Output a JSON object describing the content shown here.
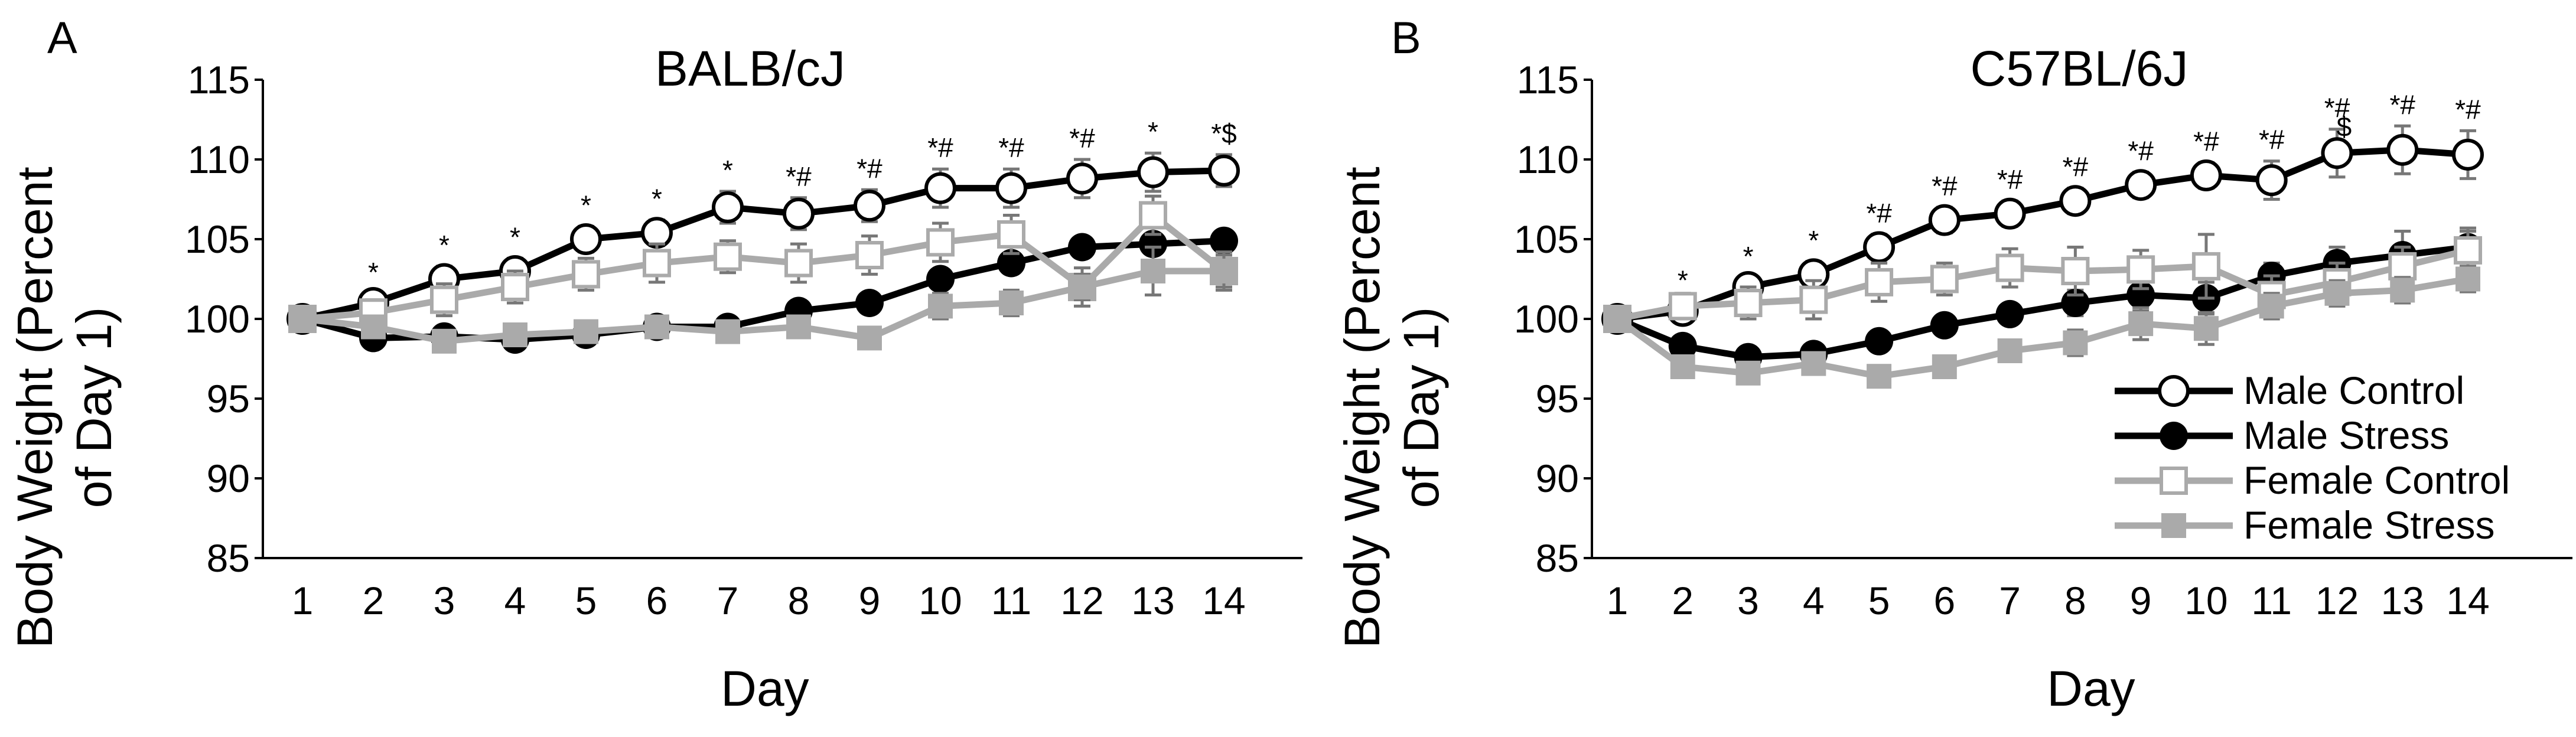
{
  "chart_data": [
    {
      "type": "line",
      "panel_letter": "A",
      "title": "BALB/cJ",
      "xlabel": "Day",
      "ylabel_line1": "Body Weight (Percent",
      "ylabel_line2": "of Day 1)",
      "ylim": [
        85,
        115
      ],
      "y_ticks": [
        85,
        90,
        95,
        100,
        105,
        110,
        115
      ],
      "x": [
        1,
        2,
        3,
        4,
        5,
        6,
        7,
        8,
        9,
        10,
        11,
        12,
        13,
        14
      ],
      "series": [
        {
          "name": "Male Control",
          "color": "#000000",
          "marker": "open-circle",
          "values": [
            100,
            101.0,
            102.5,
            103.0,
            105.0,
            105.4,
            107.0,
            106.6,
            107.1,
            108.2,
            108.2,
            108.8,
            109.2,
            109.3
          ],
          "errors": [
            0,
            0.6,
            0.8,
            0.8,
            0.8,
            0.8,
            1.0,
            1.0,
            1.0,
            1.2,
            1.2,
            1.2,
            1.2,
            1.0
          ]
        },
        {
          "name": "Male Stress",
          "color": "#000000",
          "marker": "filled-circle",
          "values": [
            100,
            98.8,
            98.9,
            98.7,
            99.0,
            99.5,
            99.5,
            100.5,
            101.0,
            102.5,
            103.5,
            104.5,
            104.7,
            104.9
          ],
          "errors": [
            0,
            0.3,
            0.3,
            0.3,
            0.3,
            0.3,
            0.3,
            0.4,
            0.4,
            0.5,
            0.5,
            0.6,
            0.6,
            0.6
          ]
        },
        {
          "name": "Female Control",
          "color": "#aaaaaa",
          "marker": "open-square",
          "values": [
            100,
            100.4,
            101.2,
            102.0,
            102.8,
            103.5,
            103.9,
            103.5,
            104.0,
            104.8,
            105.3,
            102.0,
            106.5,
            103.0
          ],
          "errors": [
            0,
            0.8,
            1.0,
            1.0,
            1.0,
            1.2,
            1.0,
            1.2,
            1.2,
            1.2,
            1.2,
            1.2,
            1.2,
            1.2
          ]
        },
        {
          "name": "Female Stress",
          "color": "#aaaaaa",
          "marker": "filled-square",
          "values": [
            100,
            99.5,
            98.6,
            99.0,
            99.2,
            99.5,
            99.2,
            99.5,
            98.8,
            100.8,
            101.0,
            102.0,
            103.0,
            103.0
          ],
          "errors": [
            0,
            0.3,
            0.4,
            0.5,
            0.5,
            0.5,
            0.6,
            0.6,
            0.6,
            0.8,
            0.8,
            0.8,
            1.5,
            1.0
          ]
        }
      ],
      "annotations": [
        {
          "day": 2,
          "text": "*"
        },
        {
          "day": 3,
          "text": "*"
        },
        {
          "day": 4,
          "text": "*"
        },
        {
          "day": 5,
          "text": "*"
        },
        {
          "day": 6,
          "text": "*"
        },
        {
          "day": 7,
          "text": "*"
        },
        {
          "day": 8,
          "text": "*#"
        },
        {
          "day": 9,
          "text": "*#"
        },
        {
          "day": 10,
          "text": "*#"
        },
        {
          "day": 11,
          "text": "*#"
        },
        {
          "day": 12,
          "text": "*#"
        },
        {
          "day": 13,
          "text": "*"
        },
        {
          "day": 14,
          "text": "*$"
        }
      ]
    },
    {
      "type": "line",
      "panel_letter": "B",
      "title": "C57BL/6J",
      "xlabel": "Day",
      "ylabel_line1": "Body Weight (Percent",
      "ylabel_line2": "of Day 1)",
      "ylim": [
        85,
        115
      ],
      "y_ticks": [
        85,
        90,
        95,
        100,
        105,
        110,
        115
      ],
      "x": [
        1,
        2,
        3,
        4,
        5,
        6,
        7,
        8,
        9,
        10,
        11,
        12,
        13,
        14
      ],
      "legend_position": "bottom-right",
      "series": [
        {
          "name": "Male Control",
          "color": "#000000",
          "marker": "open-circle",
          "values": [
            100,
            100.5,
            102.0,
            102.8,
            104.5,
            106.2,
            106.6,
            107.4,
            108.4,
            109.0,
            108.7,
            110.4,
            110.6,
            110.3
          ],
          "errors": [
            0,
            0.6,
            0.6,
            0.8,
            0.8,
            0.8,
            0.8,
            0.8,
            0.8,
            0.8,
            1.2,
            1.5,
            1.5,
            1.5
          ]
        },
        {
          "name": "Male Stress",
          "color": "#000000",
          "marker": "filled-circle",
          "values": [
            100,
            98.3,
            97.6,
            97.8,
            98.6,
            99.6,
            100.3,
            101.0,
            101.5,
            101.3,
            102.7,
            103.5,
            104.0,
            104.5
          ],
          "errors": [
            0,
            0.5,
            0.5,
            0.5,
            0.5,
            0.5,
            0.6,
            0.8,
            1.0,
            1.0,
            0.8,
            1.0,
            1.5,
            1.2
          ]
        },
        {
          "name": "Female Control",
          "color": "#aaaaaa",
          "marker": "open-square",
          "values": [
            100,
            100.8,
            101.0,
            101.2,
            102.3,
            102.5,
            103.2,
            103.0,
            103.1,
            103.3,
            101.5,
            102.3,
            103.3,
            104.3
          ],
          "errors": [
            0,
            0.8,
            1.0,
            1.2,
            1.2,
            1.0,
            1.2,
            1.5,
            1.2,
            2.0,
            1.2,
            1.2,
            1.2,
            1.2
          ]
        },
        {
          "name": "Female Stress",
          "color": "#aaaaaa",
          "marker": "filled-square",
          "values": [
            100,
            97.0,
            96.6,
            97.2,
            96.4,
            97.0,
            98.0,
            98.5,
            99.7,
            99.4,
            100.8,
            101.6,
            101.8,
            102.5
          ],
          "errors": [
            0,
            0.5,
            0.5,
            0.5,
            0.6,
            0.5,
            0.6,
            0.8,
            1.0,
            1.0,
            0.8,
            0.8,
            0.8,
            0.8
          ]
        }
      ],
      "annotations": [
        {
          "day": 2,
          "text": "*"
        },
        {
          "day": 3,
          "text": "*"
        },
        {
          "day": 4,
          "text": "*"
        },
        {
          "day": 5,
          "text": "*#"
        },
        {
          "day": 6,
          "text": "*#"
        },
        {
          "day": 7,
          "text": "*#"
        },
        {
          "day": 8,
          "text": "*#"
        },
        {
          "day": 9,
          "text": "*#"
        },
        {
          "day": 10,
          "text": "*#"
        },
        {
          "day": 11,
          "text": "*#"
        },
        {
          "day": 12,
          "text": "*#",
          "sub": "$"
        },
        {
          "day": 13,
          "text": "*#"
        },
        {
          "day": 14,
          "text": "*#"
        }
      ]
    }
  ]
}
